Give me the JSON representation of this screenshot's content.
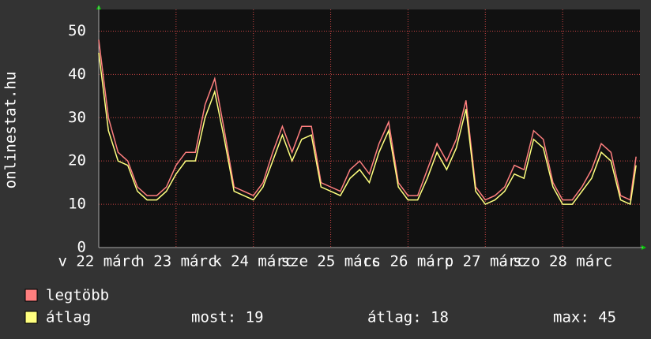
{
  "chart_data": {
    "type": "line",
    "y_label": "onlinestat.hu",
    "x": [
      0,
      0.125,
      0.25,
      0.375,
      0.5,
      0.625,
      0.75,
      0.875,
      1,
      1.125,
      1.25,
      1.375,
      1.5,
      1.625,
      1.75,
      1.875,
      2,
      2.125,
      2.25,
      2.375,
      2.5,
      2.625,
      2.75,
      2.875,
      3,
      3.125,
      3.25,
      3.375,
      3.5,
      3.625,
      3.75,
      3.875,
      4,
      4.125,
      4.25,
      4.375,
      4.5,
      4.625,
      4.75,
      4.875,
      5,
      5.125,
      5.25,
      5.375,
      5.5,
      5.625,
      5.75,
      5.875,
      6,
      6.125,
      6.25,
      6.375,
      6.5,
      6.625,
      6.75,
      6.875,
      6.95
    ],
    "series": [
      {
        "name": "legtöbb",
        "color": "#ff7f7f",
        "values": [
          48,
          30,
          22,
          20,
          14,
          12,
          12,
          14,
          19,
          22,
          22,
          33,
          39,
          27,
          14,
          13,
          12,
          15,
          22,
          28,
          22,
          28,
          28,
          15,
          14,
          13,
          18,
          20,
          17,
          24,
          29,
          15,
          12,
          12,
          18,
          24,
          20,
          25,
          34,
          14,
          11,
          12,
          14,
          19,
          18,
          27,
          25,
          15,
          11,
          11,
          14,
          18,
          24,
          22,
          12,
          11,
          21
        ]
      },
      {
        "name": "átlag",
        "color": "#ffff7f",
        "values": [
          45,
          27,
          20,
          19,
          13,
          11,
          11,
          13,
          17,
          20,
          20,
          30,
          36,
          25,
          13,
          12,
          11,
          14,
          20,
          26,
          20,
          25,
          26,
          14,
          13,
          12,
          16,
          18,
          15,
          22,
          27,
          14,
          11,
          11,
          16,
          22,
          18,
          23,
          32,
          13,
          10,
          11,
          13,
          17,
          16,
          25,
          23,
          14,
          10,
          10,
          13,
          16,
          22,
          20,
          11,
          10,
          19
        ]
      }
    ],
    "stats": [
      "most: 19",
      "átlag: 18",
      "max: 45"
    ],
    "xlim": [
      0,
      7
    ],
    "xticks": [
      {
        "value": 0,
        "label": "v 22 márc"
      },
      {
        "value": 1,
        "label": "h 23 márc"
      },
      {
        "value": 2,
        "label": "k 24 márc"
      },
      {
        "value": 3,
        "label": "sze 25 márc"
      },
      {
        "value": 4,
        "label": "cs 26 márc"
      },
      {
        "value": 5,
        "label": "p 27 márc"
      },
      {
        "value": 6,
        "label": "szo 28 márc"
      }
    ],
    "ylim": [
      0,
      55
    ],
    "yticks": [
      0,
      10,
      20,
      30,
      40,
      50
    ],
    "grid": true
  }
}
